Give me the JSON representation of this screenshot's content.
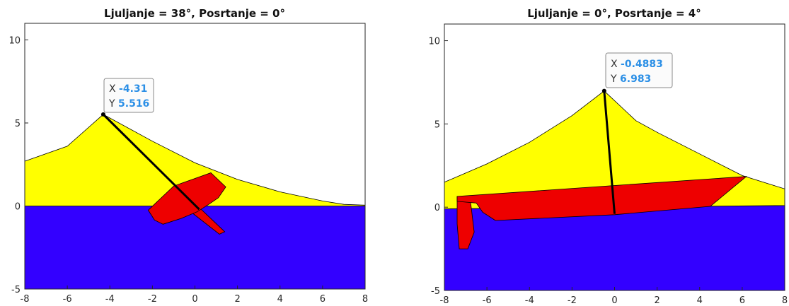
{
  "chart_data": [
    {
      "type": "area",
      "title": "Ljuljanje = 38°, Posrtanje = 0°",
      "xlim": [
        -8,
        8
      ],
      "ylim": [
        -5,
        11
      ],
      "xticks": [
        "-8",
        "-6",
        "-4",
        "-2",
        "0",
        "2",
        "4",
        "6",
        "8"
      ],
      "yticks": [
        "-5",
        "0",
        "5",
        "10"
      ],
      "grid": false,
      "colors": {
        "sail": "#ffff00",
        "water": "#3300ff",
        "hull": "#ee0000",
        "mast": "#000000"
      },
      "water_polygon": [
        [
          -8,
          0
        ],
        [
          8,
          0
        ],
        [
          8,
          -5
        ],
        [
          -8,
          -5
        ]
      ],
      "sail_polygon": [
        [
          -8,
          2.7
        ],
        [
          -6,
          3.6
        ],
        [
          -4.31,
          5.516
        ],
        [
          -2,
          3.9
        ],
        [
          0,
          2.6
        ],
        [
          2,
          1.6
        ],
        [
          4,
          0.85
        ],
        [
          6,
          0.3
        ],
        [
          7,
          0.1
        ],
        [
          8,
          0.05
        ],
        [
          8,
          0
        ],
        [
          -8,
          0
        ]
      ],
      "hull_polygon": [
        [
          -2.2,
          -0.25
        ],
        [
          -1.0,
          1.2
        ],
        [
          0.75,
          2.0
        ],
        [
          1.45,
          1.15
        ],
        [
          1.1,
          0.5
        ],
        [
          0.65,
          0.1
        ],
        [
          0.1,
          -0.35
        ],
        [
          -0.65,
          -0.75
        ],
        [
          -1.5,
          -1.1
        ],
        [
          -1.9,
          -0.85
        ]
      ],
      "keel_polygon": [
        [
          -0.4,
          -0.15
        ],
        [
          0.25,
          -0.15
        ],
        [
          1.4,
          -1.55
        ],
        [
          1.15,
          -1.7
        ]
      ],
      "mast": {
        "x": [
          -4.31,
          0.2
        ],
        "y": [
          5.516,
          -0.2
        ]
      },
      "datatip": {
        "x_label": "X",
        "x_value": "-4.31",
        "y_label": "Y",
        "y_value": "5.516",
        "x": -4.31,
        "y": 5.516
      }
    },
    {
      "type": "area",
      "title": "Ljuljanje = 0°, Posrtanje = 4°",
      "xlim": [
        -8,
        8
      ],
      "ylim": [
        -5,
        11
      ],
      "xticks": [
        "-8",
        "-6",
        "-4",
        "-2",
        "0",
        "2",
        "4",
        "6",
        "8"
      ],
      "yticks": [
        "-5",
        "0",
        "5",
        "10"
      ],
      "grid": false,
      "colors": {
        "sail": "#ffff00",
        "water": "#3300ff",
        "hull": "#ee0000",
        "mast": "#000000"
      },
      "water_polygon": [
        [
          -8,
          -0.1
        ],
        [
          8,
          0.1
        ],
        [
          8,
          -5
        ],
        [
          -8,
          -5
        ]
      ],
      "sail_polygon": [
        [
          -8,
          1.5
        ],
        [
          -6,
          2.6
        ],
        [
          -4,
          3.9
        ],
        [
          -2,
          5.5
        ],
        [
          -0.4883,
          6.983
        ],
        [
          1,
          5.2
        ],
        [
          2,
          4.5
        ],
        [
          4,
          3.2
        ],
        [
          6,
          1.9
        ],
        [
          8,
          1.1
        ],
        [
          8,
          0.1
        ],
        [
          -8,
          -0.1
        ]
      ],
      "hull_polygon": [
        [
          -7.4,
          0.65
        ],
        [
          6.2,
          1.85
        ],
        [
          4.5,
          0.05
        ],
        [
          0,
          -0.45
        ],
        [
          -5.6,
          -0.8
        ],
        [
          -6.2,
          -0.3
        ],
        [
          -6.5,
          0.25
        ],
        [
          -7.4,
          0.35
        ]
      ],
      "keel_polygon": [
        [
          -7.4,
          0.65
        ],
        [
          -6.8,
          0.65
        ],
        [
          -6.6,
          -1.5
        ],
        [
          -6.9,
          -2.5
        ],
        [
          -7.3,
          -2.5
        ],
        [
          -7.4,
          -1.0
        ]
      ],
      "mast": {
        "x": [
          -0.4883,
          0
        ],
        "y": [
          6.983,
          -0.4
        ]
      },
      "datatip": {
        "x_label": "X",
        "x_value": "-0.4883",
        "y_label": "Y",
        "y_value": "6.983",
        "x": -0.4883,
        "y": 6.983
      }
    }
  ]
}
